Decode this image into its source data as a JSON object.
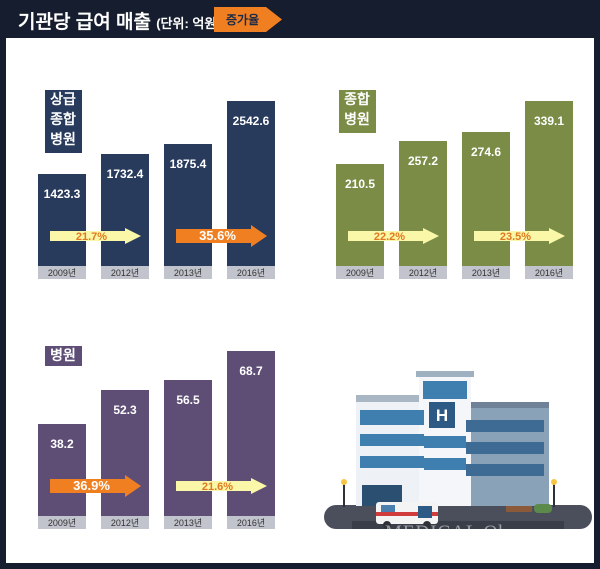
{
  "header": {
    "title": "기관당 급여 매출",
    "unit": "(단위: 억원)",
    "legend_label": "증가율"
  },
  "colors": {
    "background": "#151d2e",
    "legend_arrow": "#f07f22",
    "label_bar": "#c2c4cd",
    "arrow_light": "#fbf7a8",
    "arrow_orange": "#f07f22"
  },
  "chart_data": [
    {
      "type": "bar",
      "title": "상급\n종합\n병원",
      "color": "#293b5d",
      "categories": [
        "2009년",
        "2012년",
        "2013년",
        "2016년"
      ],
      "values": [
        1423.3,
        1732.4,
        1875.4,
        2542.6
      ],
      "value_labels": [
        "1423.3",
        "1732.4",
        "1875.4",
        "2542.6"
      ],
      "growth_rates": [
        {
          "label": "21.7%",
          "from": "2009년",
          "to": "2012년",
          "style": "light"
        },
        {
          "label": "35.6%",
          "from": "2013년",
          "to": "2016년",
          "style": "orange"
        }
      ]
    },
    {
      "type": "bar",
      "title": "종합\n병원",
      "color": "#7a8c45",
      "categories": [
        "2009년",
        "2012년",
        "2013년",
        "2016년"
      ],
      "values": [
        210.5,
        257.2,
        274.6,
        339.1
      ],
      "value_labels": [
        "210.5",
        "257.2",
        "274.6",
        "339.1"
      ],
      "growth_rates": [
        {
          "label": "22.2%",
          "from": "2009년",
          "to": "2012년",
          "style": "light"
        },
        {
          "label": "23.5%",
          "from": "2013년",
          "to": "2016년",
          "style": "light"
        }
      ]
    },
    {
      "type": "bar",
      "title": "병원",
      "color": "#5e4e75",
      "categories": [
        "2009년",
        "2012년",
        "2013년",
        "2016년"
      ],
      "values": [
        38.2,
        52.3,
        56.5,
        68.7
      ],
      "value_labels": [
        "38.2",
        "52.3",
        "56.5",
        "68.7"
      ],
      "growth_rates": [
        {
          "label": "36.9%",
          "from": "2009년",
          "to": "2012년",
          "style": "orange"
        },
        {
          "label": "21.6%",
          "from": "2013년",
          "to": "2016년",
          "style": "light"
        }
      ]
    }
  ],
  "watermark": "MEDICAL Obser"
}
